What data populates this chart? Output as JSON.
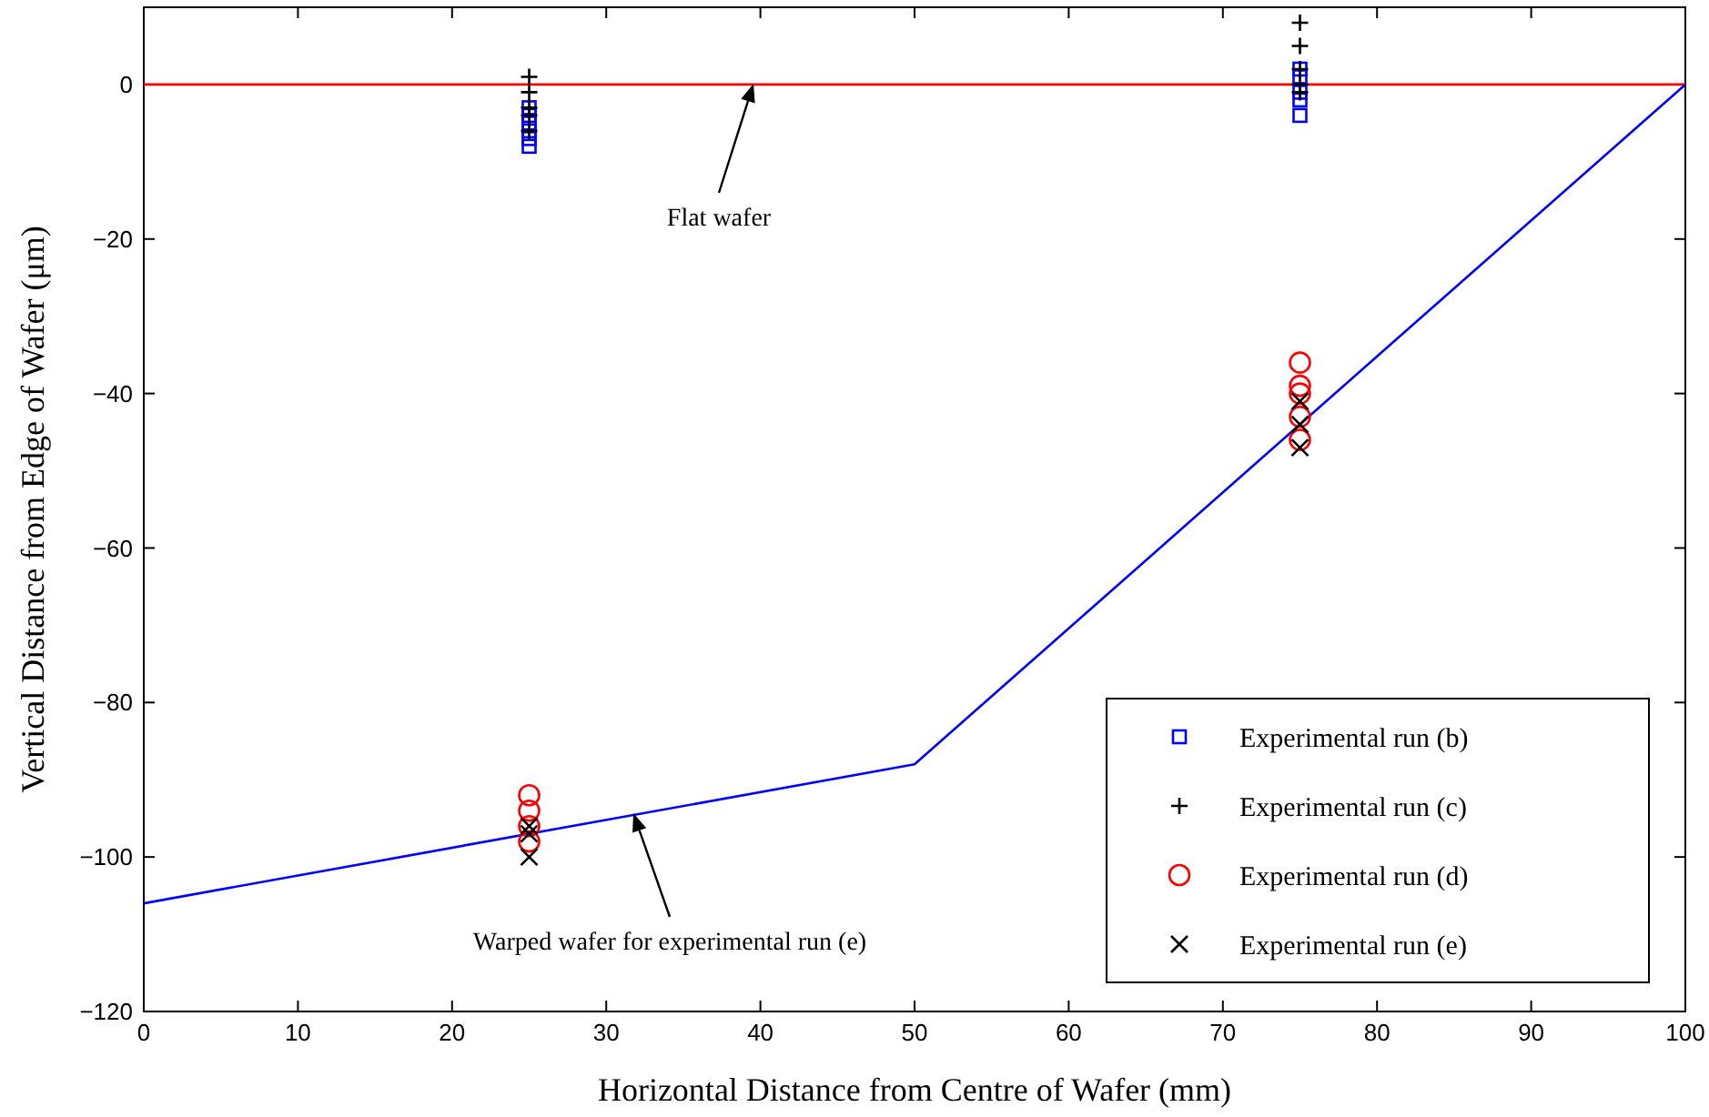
{
  "chart_data": {
    "type": "scatter",
    "xlabel": "Horizontal Distance from Centre of Wafer (mm)",
    "ylabel": "Vertical Distance from Edge of Wafer (μm)",
    "xlim": [
      0,
      100
    ],
    "xticks": [
      0,
      10,
      20,
      30,
      40,
      50,
      60,
      70,
      80,
      90,
      100
    ],
    "ylim": [
      -120,
      10
    ],
    "yticks": [
      -120,
      -100,
      -80,
      -60,
      -40,
      -20,
      0
    ],
    "grid": false,
    "legend": "bottom right",
    "series": [
      {
        "type": "line",
        "color": "#ff0000",
        "x": [
          0,
          100
        ],
        "values": [
          0,
          0
        ]
      },
      {
        "type": "line",
        "color": "#0000ff",
        "x": [
          0,
          50,
          100
        ],
        "values": [
          -106,
          -88,
          0
        ]
      },
      {
        "name": "Experimental run (b)",
        "color": "#0000ff",
        "marker": "square",
        "x": [
          25,
          25,
          25,
          25,
          25,
          25,
          75,
          75,
          75,
          75,
          75
        ],
        "values": [
          -3,
          -4,
          -5,
          -6,
          -7,
          -8,
          2,
          1,
          -1,
          -2,
          -4
        ]
      },
      {
        "name": "Experimental run (c)",
        "color": "#000000",
        "marker": "plus",
        "x": [
          25,
          25,
          25,
          25,
          25,
          75,
          75,
          75,
          75,
          75
        ],
        "values": [
          1,
          -1,
          -3,
          -4,
          -6,
          8,
          5,
          2,
          0,
          -1
        ]
      },
      {
        "name": "Experimental run (d)",
        "color": "#ff0000",
        "marker": "circle",
        "x": [
          25,
          25,
          25,
          25,
          75,
          75,
          75,
          75,
          75
        ],
        "values": [
          -92,
          -94,
          -96,
          -98,
          -36,
          -39,
          -40,
          -43,
          -46
        ]
      },
      {
        "name": "Experimental run (e)",
        "color": "#000000",
        "marker": "cross",
        "x": [
          25,
          25,
          25,
          75,
          75,
          75
        ],
        "values": [
          -96,
          -97,
          -100,
          -41,
          -44,
          -47
        ]
      }
    ],
    "annotations": [
      "Flat wafer",
      "Warped wafer for experimental run (e)"
    ]
  }
}
